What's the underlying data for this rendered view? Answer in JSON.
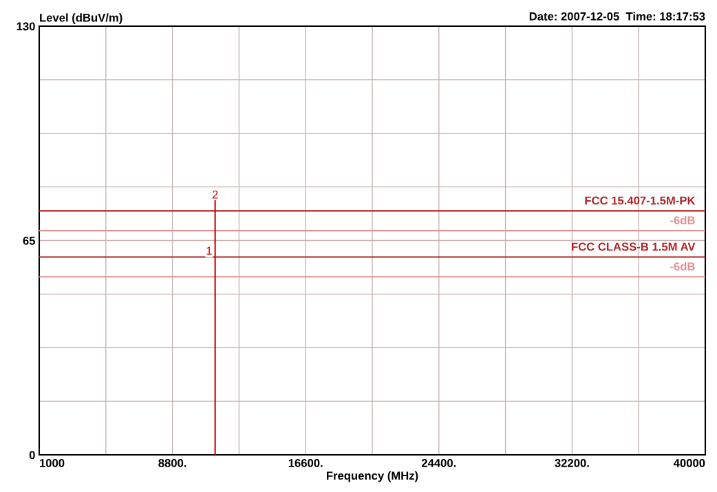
{
  "chart_data": {
    "type": "line",
    "ylabel": "Level (dBuV/m)",
    "xlabel": "Frequency (MHz)",
    "annotations": [
      "Date: 2007-12-05  Time: 18:17:53",
      {
        "text": "2",
        "x": 11300,
        "y": 77
      },
      {
        "text": "1",
        "x": 11300,
        "y": 60
      }
    ],
    "series": [
      {
        "x": [
          11300,
          11300
        ],
        "values": [
          0,
          77
        ],
        "color": "#cc0000"
      }
    ],
    "xlim": [
      1000,
      40000
    ],
    "xticks": [
      1000,
      {
        "value": 4900,
        "label": null
      },
      {
        "value": 8800,
        "label": "8800."
      },
      {
        "value": 12700,
        "label": null
      },
      {
        "value": 16600,
        "label": "16600."
      },
      {
        "value": 20500,
        "label": null
      },
      {
        "value": 24400,
        "label": "24400."
      },
      {
        "value": 28300,
        "label": null
      },
      {
        "value": 32200,
        "label": "32200."
      },
      {
        "value": 36100,
        "label": null
      },
      40000
    ],
    "ylim": [
      0,
      130
    ],
    "yticks": [
      0,
      {
        "value": 16.25,
        "label": null
      },
      {
        "value": 32.5,
        "label": null
      },
      {
        "value": 48.75,
        "label": null
      },
      65,
      {
        "value": 81.25,
        "label": null
      },
      {
        "value": 97.5,
        "label": null
      },
      {
        "value": 113.75,
        "label": null
      },
      130
    ],
    "ref_lines": [
      {
        "axis": "y",
        "value": 74,
        "label": "FCC 15.407-1.5M-PK",
        "color": "#b22222"
      },
      {
        "axis": "y",
        "value": 68,
        "label": "-6dB",
        "color": "#e39090"
      },
      {
        "axis": "y",
        "value": 60,
        "label": "FCC CLASS-B 1.5M AV",
        "color": "#b22222"
      },
      {
        "axis": "y",
        "value": 54,
        "label": "-6dB",
        "color": "#e39090"
      }
    ],
    "grid": true,
    "marker": "none",
    "line_style": "solid"
  }
}
